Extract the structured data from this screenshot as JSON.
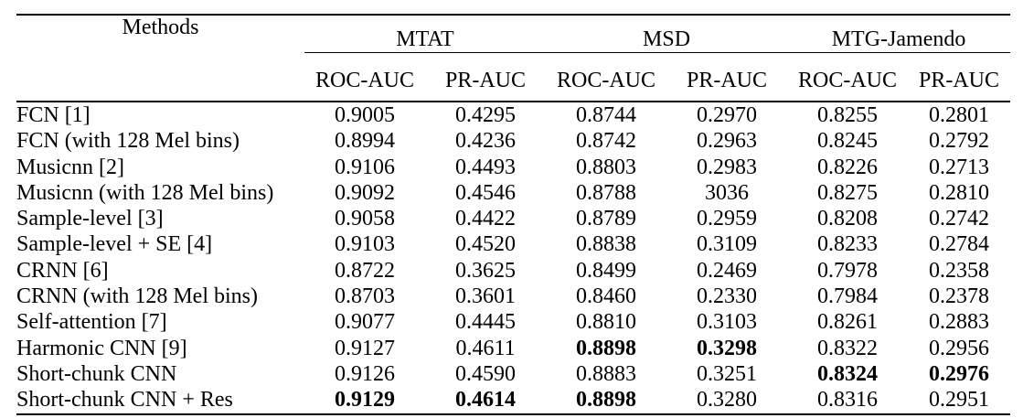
{
  "table": {
    "methods_header": "Methods",
    "groups": [
      "MTAT",
      "MSD",
      "MTG-Jamendo"
    ],
    "sub_headers": [
      "ROC-AUC",
      "PR-AUC",
      "ROC-AUC",
      "PR-AUC",
      "ROC-AUC",
      "PR-AUC"
    ],
    "rows": [
      {
        "method": "FCN [1]",
        "values": [
          "0.9005",
          "0.4295",
          "0.8744",
          "0.2970",
          "0.8255",
          "0.2801"
        ],
        "bold": [
          false,
          false,
          false,
          false,
          false,
          false
        ]
      },
      {
        "method": "FCN (with 128 Mel bins)",
        "values": [
          "0.8994",
          "0.4236",
          "0.8742",
          "0.2963",
          "0.8245",
          "0.2792"
        ],
        "bold": [
          false,
          false,
          false,
          false,
          false,
          false
        ]
      },
      {
        "method": "Musicnn [2]",
        "values": [
          "0.9106",
          "0.4493",
          "0.8803",
          "0.2983",
          "0.8226",
          "0.2713"
        ],
        "bold": [
          false,
          false,
          false,
          false,
          false,
          false
        ]
      },
      {
        "method": "Musicnn (with 128 Mel bins)",
        "values": [
          "0.9092",
          "0.4546",
          "0.8788",
          "3036",
          "0.8275",
          "0.2810"
        ],
        "bold": [
          false,
          false,
          false,
          false,
          false,
          false
        ]
      },
      {
        "method": "Sample-level [3]",
        "values": [
          "0.9058",
          "0.4422",
          "0.8789",
          "0.2959",
          "0.8208",
          "0.2742"
        ],
        "bold": [
          false,
          false,
          false,
          false,
          false,
          false
        ]
      },
      {
        "method": "Sample-level + SE [4]",
        "values": [
          "0.9103",
          "0.4520",
          "0.8838",
          "0.3109",
          "0.8233",
          "0.2784"
        ],
        "bold": [
          false,
          false,
          false,
          false,
          false,
          false
        ]
      },
      {
        "method": "CRNN [6]",
        "values": [
          "0.8722",
          "0.3625",
          "0.8499",
          "0.2469",
          "0.7978",
          "0.2358"
        ],
        "bold": [
          false,
          false,
          false,
          false,
          false,
          false
        ]
      },
      {
        "method": "CRNN (with 128 Mel bins)",
        "values": [
          "0.8703",
          "0.3601",
          "0.8460",
          "0.2330",
          "0.7984",
          "0.2378"
        ],
        "bold": [
          false,
          false,
          false,
          false,
          false,
          false
        ]
      },
      {
        "method": "Self-attention [7]",
        "values": [
          "0.9077",
          "0.4445",
          "0.8810",
          "0.3103",
          "0.8261",
          "0.2883"
        ],
        "bold": [
          false,
          false,
          false,
          false,
          false,
          false
        ]
      },
      {
        "method": "Harmonic CNN [9]",
        "values": [
          "0.9127",
          "0.4611",
          "0.8898",
          "0.3298",
          "0.8322",
          "0.2956"
        ],
        "bold": [
          false,
          false,
          true,
          true,
          false,
          false
        ]
      },
      {
        "method": "Short-chunk CNN",
        "values": [
          "0.9126",
          "0.4590",
          "0.8883",
          "0.3251",
          "0.8324",
          "0.2976"
        ],
        "bold": [
          false,
          false,
          false,
          false,
          true,
          true
        ]
      },
      {
        "method": "Short-chunk CNN + Res",
        "values": [
          "0.9129",
          "0.4614",
          "0.8898",
          "0.3280",
          "0.8316",
          "0.2951"
        ],
        "bold": [
          true,
          true,
          true,
          false,
          false,
          false
        ]
      }
    ],
    "colors": {
      "text": "#000000",
      "rule": "#000000",
      "background": "#ffffff"
    }
  }
}
